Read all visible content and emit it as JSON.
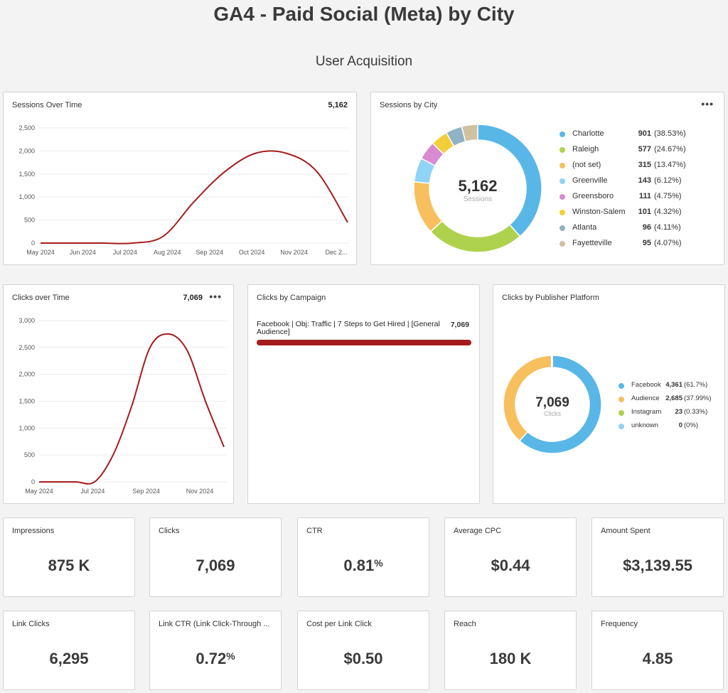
{
  "page": {
    "title": "GA4 - Paid Social (Meta) by City",
    "subtitle": "User Acquisition"
  },
  "colors": {
    "line": "#a61c1c",
    "blue": "#58b7e7",
    "green": "#aed24e",
    "orange": "#f8bf5e",
    "lightblue": "#8fd3f7",
    "pink": "#d98ad0",
    "yellow": "#f2cf3a",
    "slate": "#8fb2c4",
    "tan": "#cec2a1"
  },
  "sessions_over_time": {
    "title": "Sessions Over Time",
    "total": "5,162",
    "chart_data": {
      "type": "line",
      "x_labels": [
        "May 2024",
        "Jun 2024",
        "Jul 2024",
        "Aug 2024",
        "Sep 2024",
        "Oct 2024",
        "Nov 2024",
        "Dec 2..."
      ],
      "y_ticks": [
        "0",
        "500",
        "1,000",
        "1,500",
        "2,000",
        "2,500"
      ],
      "ylim": [
        0,
        2500
      ],
      "x": [
        "May 2024",
        "Jun 2024",
        "Jul 2024",
        "Aug 2024",
        "Aug 2024+",
        "Sep 2024",
        "Sep 2024+",
        "Oct 2024",
        "Oct 2024+",
        "Nov 2024",
        "Dec 2024"
      ],
      "values": [
        0,
        0,
        0,
        0,
        150,
        900,
        1550,
        1950,
        1950,
        1550,
        450
      ]
    }
  },
  "sessions_by_city": {
    "title": "Sessions by City",
    "menu": "•••",
    "center_value": "5,162",
    "center_label": "Sessions",
    "chart_data": {
      "type": "pie",
      "slices": [
        {
          "name": "Charlotte",
          "value": 901,
          "value_label": "901",
          "pct": "(38.53%)",
          "color": "#58b7e7"
        },
        {
          "name": "Raleigh",
          "value": 577,
          "value_label": "577",
          "pct": "(24.67%)",
          "color": "#aed24e"
        },
        {
          "name": "(not set)",
          "value": 315,
          "value_label": "315",
          "pct": "(13.47%)",
          "color": "#f8bf5e"
        },
        {
          "name": "Greenville",
          "value": 143,
          "value_label": "143",
          "pct": "(6.12%)",
          "color": "#8fd3f7"
        },
        {
          "name": "Greensboro",
          "value": 111,
          "value_label": "111",
          "pct": "(4.75%)",
          "color": "#d98ad0"
        },
        {
          "name": "Winston-Salem",
          "value": 101,
          "value_label": "101",
          "pct": "(4.32%)",
          "color": "#f2cf3a"
        },
        {
          "name": "Atlanta",
          "value": 96,
          "value_label": "96",
          "pct": "(4.11%)",
          "color": "#8fb2c4"
        },
        {
          "name": "Fayetteville",
          "value": 95,
          "value_label": "95",
          "pct": "(4.07%)",
          "color": "#cec2a1"
        }
      ]
    }
  },
  "clicks_over_time": {
    "title": "Clicks over Time",
    "total": "7,069",
    "menu": "•••",
    "chart_data": {
      "type": "line",
      "x_labels": [
        "May 2024",
        "Jul 2024",
        "Sep 2024",
        "Nov 2024"
      ],
      "y_ticks": [
        "0",
        "500",
        "1,000",
        "1,500",
        "2,000",
        "2,500",
        "3,000"
      ],
      "ylim": [
        0,
        3000
      ],
      "x": [
        "May 2024",
        "Jun 2024",
        "Jul 2024",
        "Aug 2024",
        "Aug 2024+",
        "Sep 2024",
        "Sep 2024+",
        "Oct 2024",
        "Oct 2024+",
        "Nov 2024",
        "Nov 2024+"
      ],
      "values": [
        0,
        0,
        0,
        0,
        500,
        1400,
        2500,
        2750,
        2450,
        1500,
        650
      ]
    }
  },
  "clicks_by_campaign": {
    "title": "Clicks by Campaign",
    "chart_data": {
      "type": "bar",
      "categories": [
        "Facebook | Obj: Traffic | 7 Steps to Get Hired | [General Audience]"
      ],
      "values": [
        7069
      ],
      "value_labels": [
        "7,069"
      ]
    }
  },
  "clicks_by_platform": {
    "title": "Clicks by Publisher Platform",
    "center_value": "7,069",
    "center_label": "Clicks",
    "chart_data": {
      "type": "pie",
      "slices": [
        {
          "name": "Facebook",
          "value": 4361,
          "value_label": "4,361",
          "pct": "(61.7%)",
          "color": "#58b7e7"
        },
        {
          "name": "Audience",
          "value": 2685,
          "value_label": "2,685",
          "pct": "(37.99%)",
          "color": "#f8bf5e"
        },
        {
          "name": "Instagram",
          "value": 23,
          "value_label": "23",
          "pct": "(0.33%)",
          "color": "#aed24e"
        },
        {
          "name": "unknown",
          "value": 0,
          "value_label": "0",
          "pct": "(0%)",
          "color": "#8fd3f7"
        }
      ]
    }
  },
  "kpis_row1": [
    {
      "label": "Impressions",
      "value": "875 K",
      "suffix": ""
    },
    {
      "label": "Clicks",
      "value": "7,069",
      "suffix": ""
    },
    {
      "label": "CTR",
      "value": "0.81",
      "suffix": "%"
    },
    {
      "label": "Average CPC",
      "value": "$0.44",
      "suffix": ""
    },
    {
      "label": "Amount Spent",
      "value": "$3,139.55",
      "suffix": ""
    }
  ],
  "kpis_row2": [
    {
      "label": "Link Clicks",
      "value": "6,295",
      "suffix": ""
    },
    {
      "label": "Link CTR (Link Click-Through ...",
      "value": "0.72",
      "suffix": "%"
    },
    {
      "label": "Cost per Link Click",
      "value": "$0.50",
      "suffix": ""
    },
    {
      "label": "Reach",
      "value": "180 K",
      "suffix": ""
    },
    {
      "label": "Frequency",
      "value": "4.85",
      "suffix": ""
    }
  ]
}
